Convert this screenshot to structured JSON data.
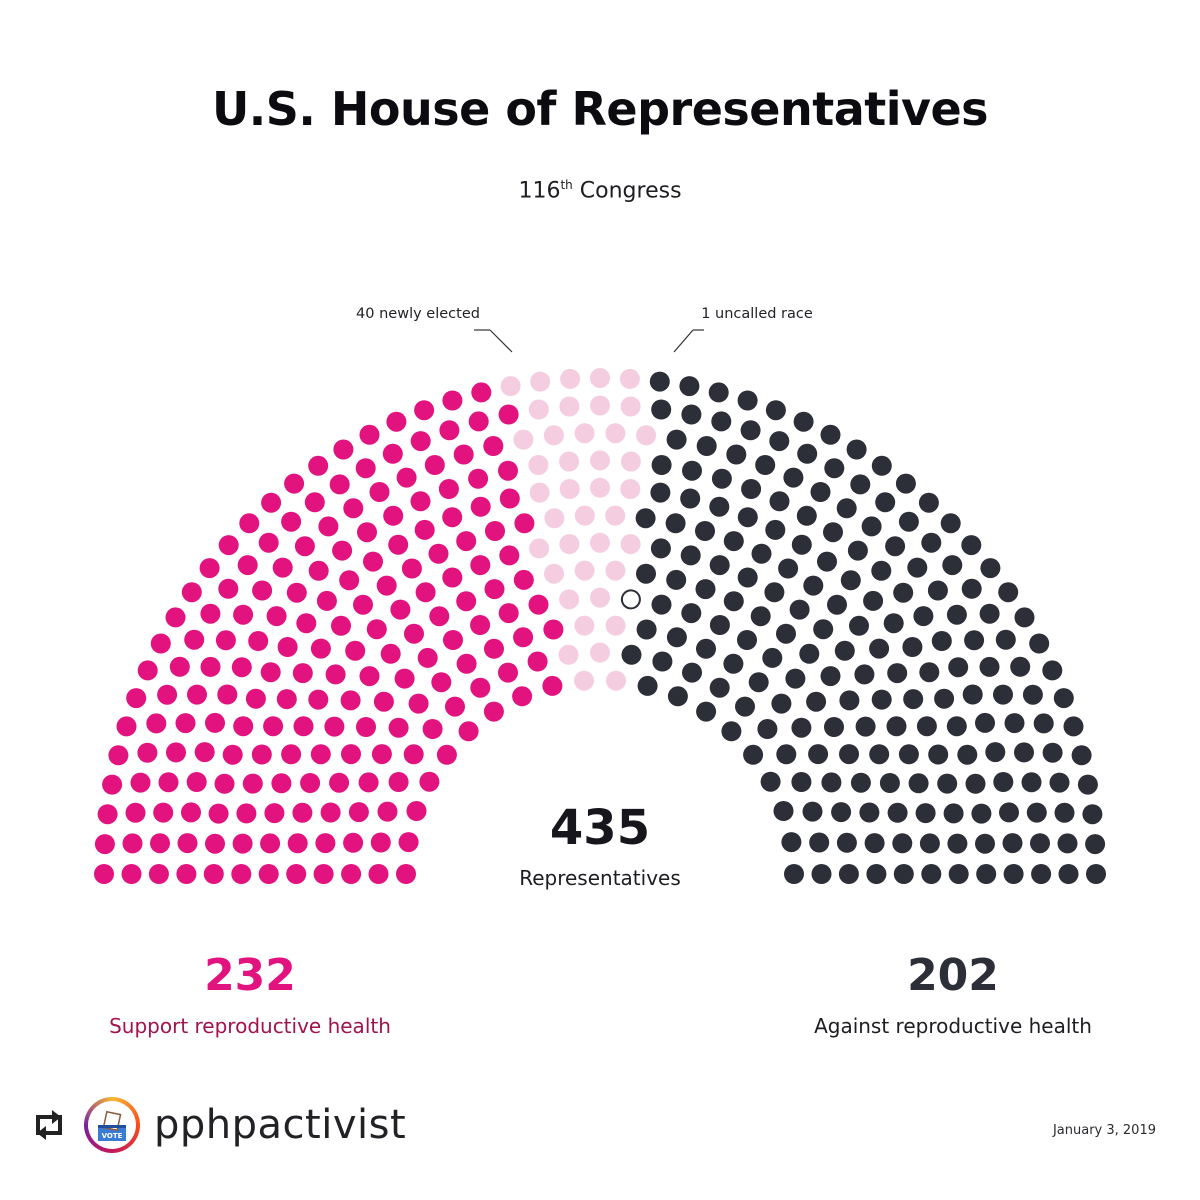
{
  "header": {
    "title": "U.S. House of Representatives",
    "subtitle_main": "116",
    "subtitle_sup": "th",
    "subtitle_rest": " Congress"
  },
  "annotations": {
    "newly_elected": "40 newly elected",
    "uncalled": "1 uncalled race"
  },
  "total": {
    "value": "435",
    "label": "Representatives"
  },
  "support": {
    "value": "232",
    "label": "Support reproductive health"
  },
  "against": {
    "value": "202",
    "label": "Against reproductive health"
  },
  "date": "January 3, 2019",
  "footer": {
    "username": "pphpactivist",
    "vote_badge": "VOTE"
  },
  "colors": {
    "support": "#e2127f",
    "newly_elected": "#f5cde0",
    "against": "#2c2e38",
    "uncalled": "#ffffff",
    "uncalled_stroke": "#2c2e38"
  },
  "chart_data": {
    "type": "parliament",
    "title": "U.S. House of Representatives",
    "total": 435,
    "series": [
      {
        "name": "Support reproductive health (returning)",
        "value": 192,
        "color": "#e2127f"
      },
      {
        "name": "40 newly elected",
        "value": 40,
        "color": "#f5cde0"
      },
      {
        "name": "1 uncalled race",
        "value": 1,
        "color": "#ffffff"
      },
      {
        "name": "Against reproductive health",
        "value": 202,
        "color": "#2c2e38"
      }
    ]
  }
}
